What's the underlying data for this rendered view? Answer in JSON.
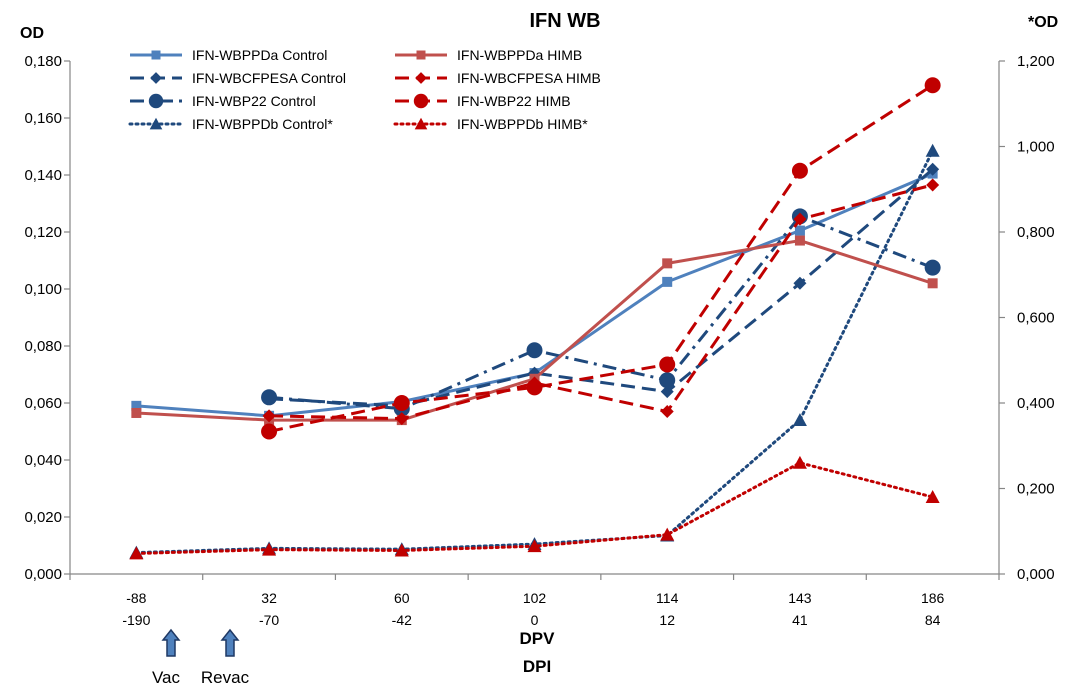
{
  "chart_data": {
    "type": "line",
    "title": "IFN WB",
    "ylabel": "OD",
    "y2label": "*OD",
    "xlabel": "DPV",
    "xlabel2": "DPI",
    "categories": [
      "-88",
      "32",
      "60",
      "102",
      "114",
      "143",
      "186"
    ],
    "categories2": [
      "-190",
      "-70",
      "-42",
      "0",
      "12",
      "41",
      "84"
    ],
    "ylim": [
      0,
      0.18
    ],
    "y2lim": [
      0,
      1.2
    ],
    "yticks": [
      "0,000",
      "0,020",
      "0,040",
      "0,060",
      "0,080",
      "0,100",
      "0,120",
      "0,140",
      "0,160",
      "0,180"
    ],
    "y2ticks": [
      "0,000",
      "0,200",
      "0,400",
      "0,600",
      "0,800",
      "1,000",
      "1,200"
    ],
    "grid": false,
    "legend_position": "top-left",
    "series": [
      {
        "name": "IFN-WBPPDa Control",
        "axis": "left",
        "color": "#4F81BD",
        "dash": "solid",
        "marker": "square",
        "values": [
          0.059,
          0.0555,
          0.0605,
          0.0705,
          0.1025,
          0.1205,
          0.1405
        ]
      },
      {
        "name": "IFN-WBCFPESA Control",
        "axis": "left",
        "color": "#1F497D",
        "dash": "longdash",
        "marker": "diamond",
        "values": [
          null,
          0.0615,
          0.059,
          0.0705,
          0.064,
          0.102,
          0.142
        ]
      },
      {
        "name": "IFN-WBP22 Control",
        "axis": "left",
        "color": "#1F497D",
        "dash": "dashdot",
        "marker": "circle",
        "values": [
          null,
          0.062,
          0.058,
          0.0785,
          0.068,
          0.1255,
          0.1075
        ]
      },
      {
        "name": "IFN-WBPPDb Control*",
        "axis": "right",
        "color": "#1F497D",
        "dash": "dot",
        "marker": "triangle",
        "values": [
          0.05,
          0.06,
          0.058,
          0.07,
          0.09,
          0.36,
          0.99
        ]
      },
      {
        "name": "IFN-WBPPDa HIMB",
        "axis": "left",
        "color": "#C0504D",
        "dash": "solid",
        "marker": "square",
        "values": [
          0.0565,
          0.054,
          0.054,
          0.0685,
          0.109,
          0.117,
          0.102
        ]
      },
      {
        "name": "IFN-WBCFPESA HIMB",
        "axis": "left",
        "color": "#C00000",
        "dash": "longdash",
        "marker": "diamond",
        "values": [
          null,
          0.0555,
          0.0545,
          0.067,
          0.057,
          0.1245,
          0.1365
        ]
      },
      {
        "name": "IFN-WBP22 HIMB",
        "axis": "left",
        "color": "#C00000",
        "dash": "longdash",
        "marker": "circle",
        "values": [
          null,
          0.05,
          0.06,
          0.0655,
          0.0735,
          0.1415,
          0.1715
        ]
      },
      {
        "name": "IFN-WBPPDb HIMB*",
        "axis": "right",
        "color": "#C00000",
        "dash": "dot",
        "marker": "triangle",
        "values": [
          0.048,
          0.057,
          0.055,
          0.065,
          0.092,
          0.26,
          0.18
        ]
      }
    ],
    "annotations": [
      {
        "label": "Vac",
        "icon": "up-arrow-icon",
        "color": "#4F81BD",
        "x_between": [
          "-88",
          "32"
        ],
        "position": "left"
      },
      {
        "label": "Revac",
        "icon": "up-arrow-icon",
        "color": "#4F81BD",
        "x_between": [
          "-88",
          "32"
        ],
        "position": "right"
      }
    ]
  }
}
